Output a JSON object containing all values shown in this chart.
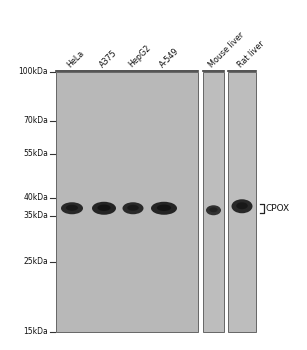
{
  "fig_width": 3.07,
  "fig_height": 3.5,
  "dpi": 100,
  "bg_color": "#ffffff",
  "mw_labels": [
    "100kDa",
    "70kDa",
    "55kDa",
    "40kDa",
    "35kDa",
    "25kDa",
    "15kDa"
  ],
  "mw_values": [
    100,
    70,
    55,
    40,
    35,
    25,
    15
  ],
  "lane_labels_p1": [
    "HeLa",
    "A375",
    "HepG2",
    "A-549"
  ],
  "lane_label_mouse": "Mouse liver",
  "lane_label_rat": "Rat liver",
  "cpox_label": "CPOX",
  "panel1_color": "#b8b8b8",
  "panel2_color": "#bdbdbd",
  "panel3_color": "#bdbdbd",
  "band_color": "#1c1c1c",
  "tick_color": "#333333",
  "label_color": "#111111"
}
